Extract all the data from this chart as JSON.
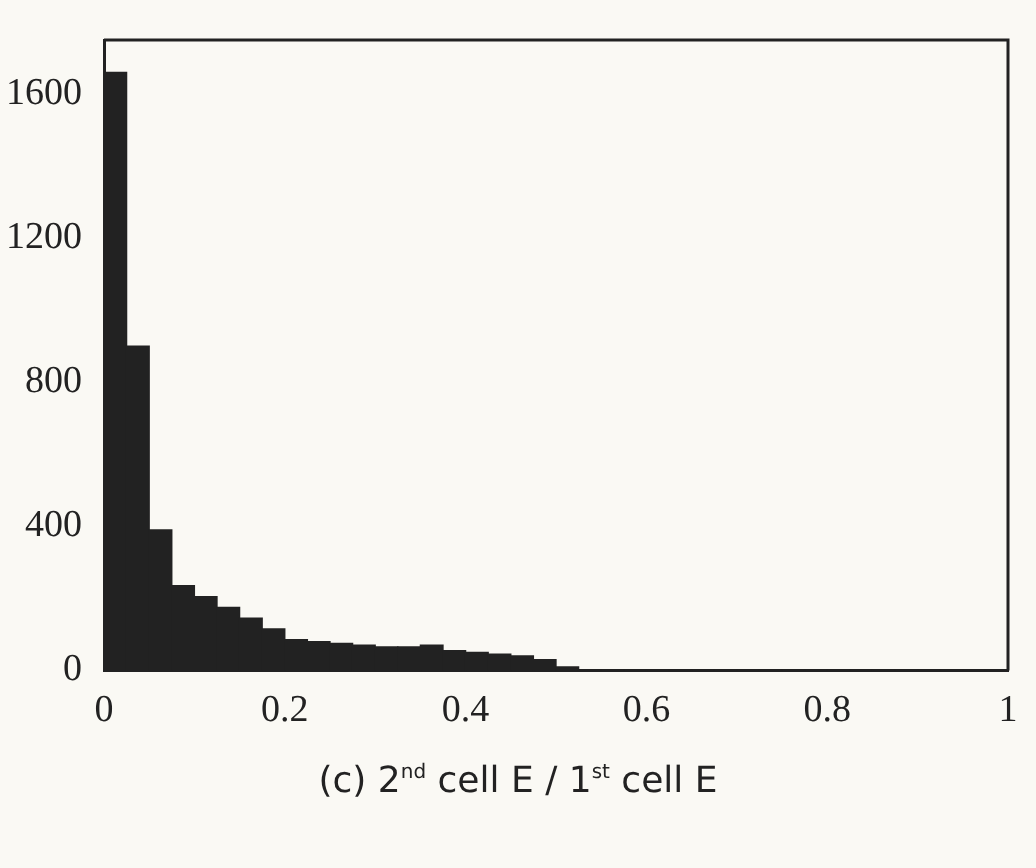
{
  "chart_data": {
    "type": "histogram",
    "xlabel": "(c) 2$^{nd}$ cell E / 1$^{st}$ cell E",
    "bins": [
      0,
      0.025,
      0.05,
      0.075,
      0.1,
      0.125,
      0.15,
      0.175,
      0.2,
      0.225,
      0.25,
      0.275,
      0.3,
      0.325,
      0.35,
      0.375,
      0.4,
      0.425,
      0.45,
      0.475,
      0.5,
      0.525,
      0.55,
      0.575,
      0.6,
      0.625,
      0.65,
      0.675,
      0.7,
      0.725,
      0.75,
      0.775,
      0.8,
      0.825,
      0.85,
      0.875,
      0.9,
      0.925,
      0.95,
      0.975,
      1
    ],
    "values": [
      1660,
      900,
      390,
      235,
      205,
      175,
      145,
      115,
      85,
      80,
      75,
      70,
      65,
      65,
      70,
      55,
      50,
      45,
      40,
      30,
      10,
      0,
      0,
      0,
      0,
      0,
      0,
      0,
      0,
      0,
      0,
      0,
      0,
      0,
      0,
      0,
      0,
      0,
      0,
      0
    ],
    "color": "#222222",
    "xlim": [
      0,
      1
    ],
    "xticks": [
      0,
      0.2,
      0.4,
      0.6,
      0.8,
      1
    ],
    "ylim": [
      0,
      1750
    ],
    "yticks": [
      0,
      400,
      800,
      1200,
      1600
    ],
    "grid": false,
    "legend": false
  }
}
